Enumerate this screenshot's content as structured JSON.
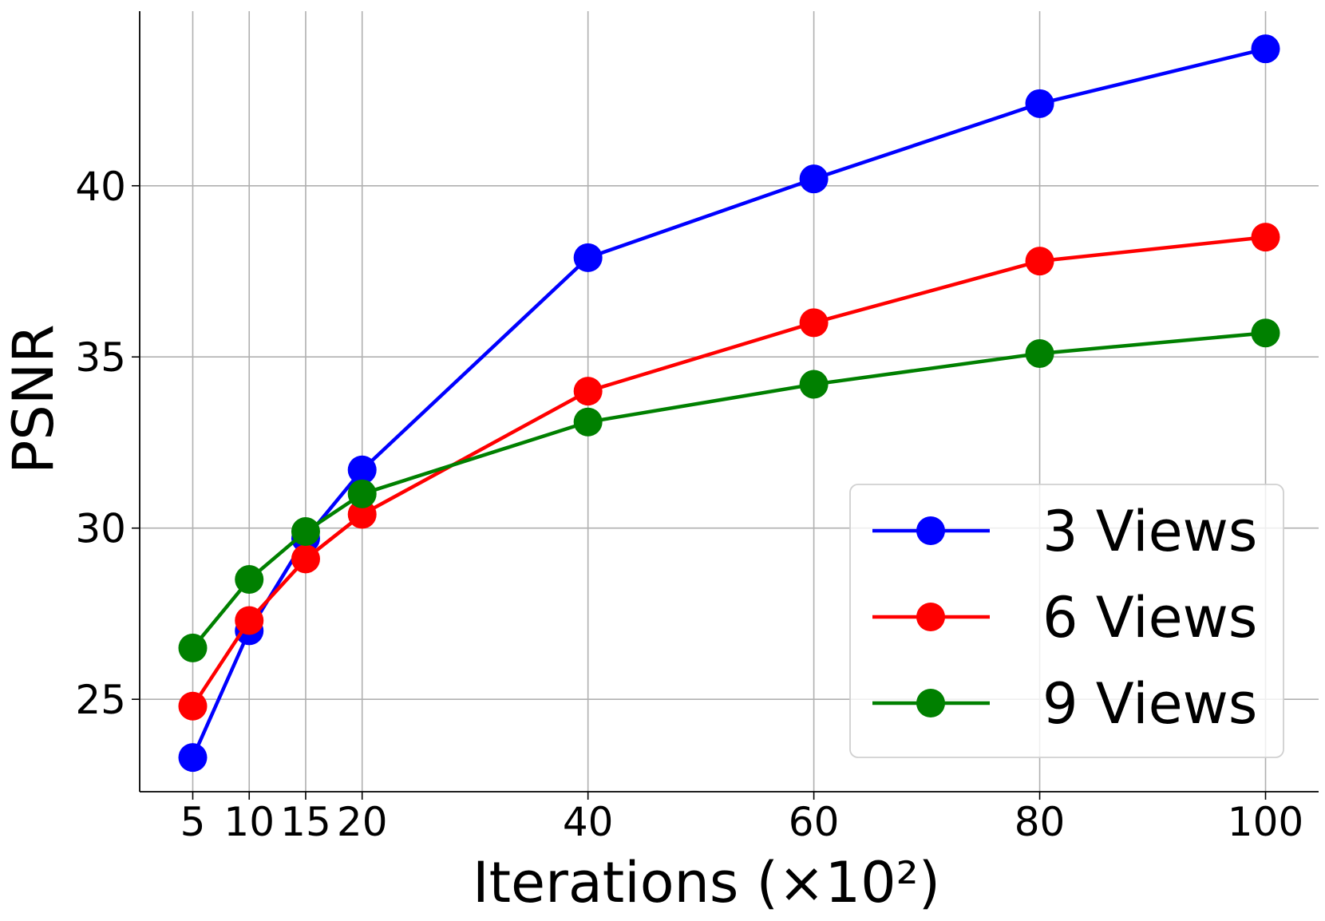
{
  "chart_data": {
    "type": "line",
    "title": "",
    "xlabel": "Iterations (×10²)",
    "ylabel": "PSNR",
    "x": [
      5,
      10,
      15,
      20,
      40,
      60,
      80,
      100
    ],
    "xticks": [
      "5",
      "10",
      "15",
      "20",
      "40",
      "60",
      "80",
      "100"
    ],
    "yticks": [
      "25",
      "30",
      "35",
      "40"
    ],
    "xlim": [
      0.3,
      104.7
    ],
    "ylim": [
      22.3,
      45.1
    ],
    "grid": true,
    "legend_position": "lower-right",
    "series": [
      {
        "name": "3 Views",
        "color": "#0000ff",
        "values": [
          23.3,
          27.0,
          29.7,
          31.7,
          37.9,
          40.2,
          42.4,
          44.0
        ]
      },
      {
        "name": "6 Views",
        "color": "#ff0000",
        "values": [
          24.8,
          27.3,
          29.1,
          30.4,
          34.0,
          36.0,
          37.8,
          38.5
        ]
      },
      {
        "name": "9 Views",
        "color": "#008000",
        "values": [
          26.5,
          28.5,
          29.9,
          31.0,
          33.1,
          34.2,
          35.1,
          35.7
        ]
      }
    ]
  }
}
